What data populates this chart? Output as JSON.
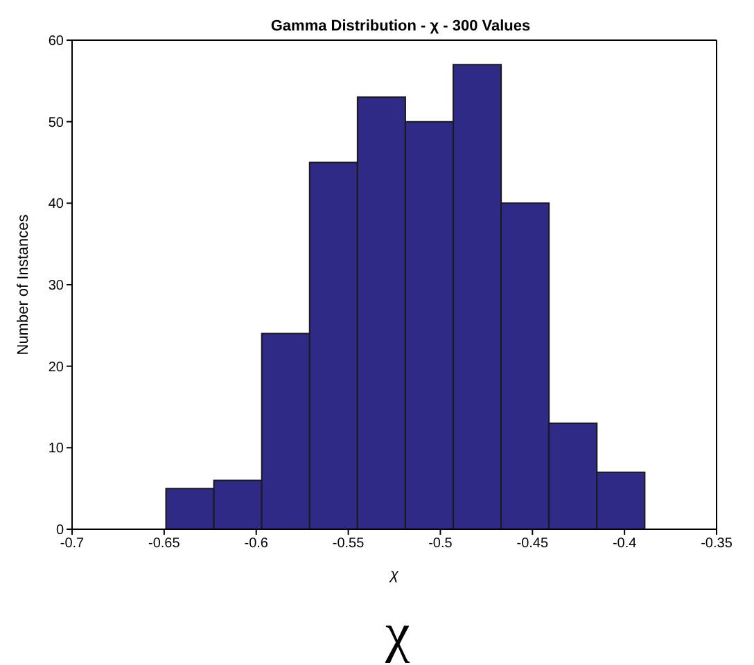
{
  "chart_data": {
    "type": "histogram",
    "title": "Gamma Distribution - χ - 300 Values",
    "xlabel": "χ",
    "ylabel": "Number of Instances",
    "bins": [
      -0.649,
      -0.623,
      -0.597,
      -0.571,
      -0.545,
      -0.519,
      -0.493,
      -0.467,
      -0.441,
      -0.415,
      -0.389
    ],
    "values": [
      5,
      6,
      24,
      45,
      53,
      50,
      57,
      40,
      13,
      7
    ],
    "color": "#2f2a86",
    "xlim": [
      -0.7,
      -0.35
    ],
    "xticks": [
      -0.7,
      -0.65,
      -0.6,
      -0.55,
      -0.5,
      -0.45,
      -0.4,
      -0.35
    ],
    "ylim": [
      0,
      60
    ],
    "yticks": [
      0,
      10,
      20,
      30,
      40,
      50,
      60
    ],
    "annotations": [
      "χ"
    ]
  }
}
